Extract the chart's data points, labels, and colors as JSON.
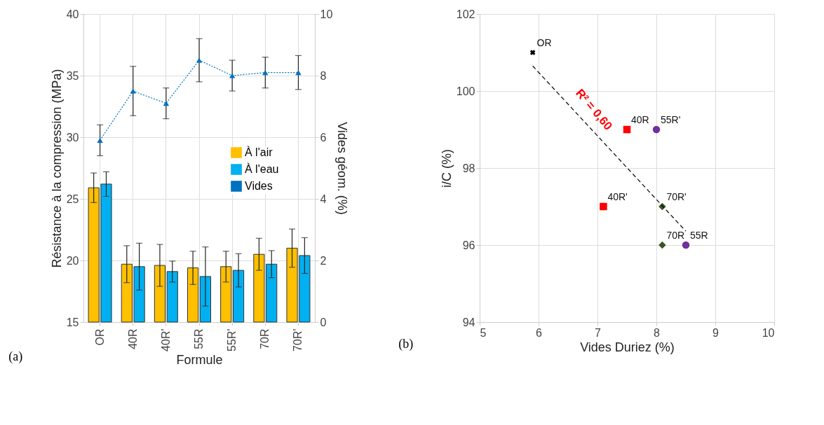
{
  "chart_data": [
    {
      "type": "bar",
      "xlabel": "Formule",
      "ylabel": "Résistance à la compression (MPa)",
      "y2label": "Vides géom. (%)",
      "annotations": [
        "(a)"
      ],
      "categories": [
        "OR",
        "40R",
        "40R'",
        "55R",
        "55R'",
        "70R",
        "70R'"
      ],
      "ylim": [
        15,
        40
      ],
      "yticks": [
        15,
        20,
        25,
        30,
        35,
        40
      ],
      "y2lim": [
        0,
        10
      ],
      "y2ticks": [
        0,
        2,
        4,
        6,
        8,
        10
      ],
      "grid": true,
      "legend": "right",
      "series": [
        {
          "name": "À l'air",
          "color": "#ffc000",
          "values": [
            25.9,
            19.7,
            19.6,
            19.4,
            19.5,
            20.5,
            21.0
          ],
          "errors": [
            1.2,
            1.5,
            1.7,
            1.35,
            1.25,
            1.3,
            1.55
          ]
        },
        {
          "name": "À l'eau",
          "color": "#00b0f0",
          "values": [
            26.2,
            19.5,
            19.1,
            18.7,
            19.2,
            19.7,
            20.4
          ],
          "errors": [
            1.0,
            1.9,
            0.85,
            2.4,
            1.35,
            1.1,
            1.45
          ]
        },
        {
          "name": "Vides",
          "type": "line",
          "axis": "y2",
          "color": "#0070c0",
          "marker": "triangle",
          "line_style": "dotted",
          "values": [
            5.9,
            7.5,
            7.1,
            8.5,
            8.0,
            8.1,
            8.1
          ],
          "errors": [
            0.5,
            0.8,
            0.5,
            0.7,
            0.5,
            0.5,
            0.55
          ]
        }
      ]
    },
    {
      "type": "scatter",
      "xlabel": "Vides Duriez (%)",
      "ylabel": "i/C (%)",
      "annotations": [
        "(b)",
        "R² = 0,60"
      ],
      "xlim": [
        5,
        10
      ],
      "xticks": [
        5,
        6,
        7,
        8,
        9,
        10
      ],
      "ylim": [
        94,
        102
      ],
      "yticks": [
        94,
        96,
        98,
        100,
        102
      ],
      "grid": true,
      "series": [
        {
          "name": "OR",
          "color": "#000000",
          "marker": "cross",
          "x": [
            5.9
          ],
          "values": [
            101
          ]
        },
        {
          "name": "40R",
          "color": "#ff0000",
          "marker": "square",
          "x": [
            7.5
          ],
          "values": [
            99
          ]
        },
        {
          "name": "55R'",
          "color": "#7030a0",
          "marker": "circle",
          "x": [
            8
          ],
          "values": [
            99
          ]
        },
        {
          "name": "40R'",
          "color": "#ff0000",
          "marker": "square",
          "x": [
            7.1
          ],
          "values": [
            97
          ]
        },
        {
          "name": "70R'",
          "color": "#375623",
          "marker": "diamond",
          "x": [
            8.1
          ],
          "values": [
            97
          ]
        },
        {
          "name": "70R",
          "color": "#375623",
          "marker": "diamond",
          "x": [
            8.1
          ],
          "values": [
            96
          ]
        },
        {
          "name": "55R",
          "color": "#7030a0",
          "marker": "circle",
          "x": [
            8.5
          ],
          "values": [
            96
          ]
        },
        {
          "type": "line",
          "color": "#000000",
          "line_style": "dashed",
          "x": [
            5.9,
            8.5
          ],
          "values": [
            100.65,
            96.36
          ]
        }
      ]
    }
  ]
}
